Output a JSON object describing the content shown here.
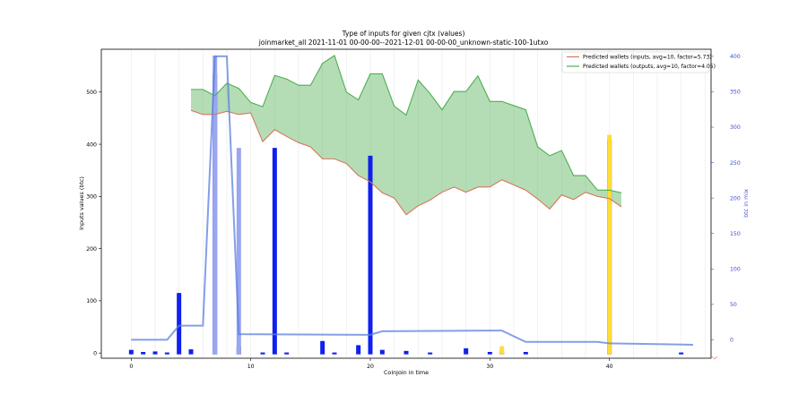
{
  "chart_data": {
    "type": "area",
    "title": "Type of inputs for given cjtx (values)",
    "subtitle": "joinmarket_all 2021-11-01 00-00-00--2021-12-01 00-00-00_unknown-static-100-1utxo",
    "xlabel": "Coinjoin in time",
    "ylabel": "Inputs values (btc)",
    "ylabel_right": "btc in mix",
    "xlim": [
      -2.5,
      48.5
    ],
    "ylim": [
      -10,
      582
    ],
    "ylim_right": [
      -26,
      410
    ],
    "x_ticks": [
      0,
      10,
      20,
      30,
      40
    ],
    "y_ticks": [
      0,
      100,
      200,
      300,
      400,
      500
    ],
    "y_ticks_right": [
      0,
      50,
      100,
      150,
      200,
      250,
      300,
      350,
      400
    ],
    "legend_position": "upper-right",
    "legend": [
      {
        "label": "Predicted wallets (inputs, avg=10, factor=5.73)",
        "color": "#d9765a"
      },
      {
        "label": "Predicted wallets (outputs, avg=10, factor=4.05)",
        "color": "#4caf50"
      }
    ],
    "series": [
      {
        "name": "Predicted wallets (inputs, avg=10, factor=5.73)",
        "color": "#d9765a",
        "x": [
          5,
          6,
          7,
          8,
          9,
          10,
          11,
          12,
          13,
          14,
          15,
          16,
          17,
          18,
          19,
          20,
          21,
          22,
          23,
          24,
          25,
          26,
          27,
          28,
          29,
          30,
          31,
          32,
          33,
          34,
          35,
          36,
          37,
          38,
          39,
          40,
          41
        ],
        "values": [
          465,
          457,
          457,
          463,
          457,
          460,
          405,
          428,
          415,
          403,
          395,
          372,
          372,
          363,
          340,
          328,
          307,
          297,
          265,
          282,
          293,
          308,
          318,
          308,
          318,
          318,
          332,
          322,
          312,
          295,
          276,
          303,
          294,
          308,
          300,
          296,
          280
        ]
      },
      {
        "name": "Predicted wallets (outputs, avg=10, factor=4.05)",
        "color": "#4caf50",
        "x": [
          5,
          6,
          7,
          8,
          9,
          10,
          11,
          12,
          13,
          14,
          15,
          16,
          17,
          18,
          19,
          20,
          21,
          22,
          23,
          24,
          25,
          26,
          27,
          28,
          29,
          30,
          31,
          32,
          33,
          34,
          35,
          36,
          37,
          38,
          39,
          40,
          41
        ],
        "values": [
          505,
          505,
          493,
          517,
          507,
          480,
          472,
          532,
          525,
          513,
          513,
          555,
          570,
          500,
          485,
          535,
          535,
          473,
          456,
          523,
          497,
          466,
          501,
          501,
          531,
          482,
          482,
          474,
          466,
          395,
          378,
          388,
          340,
          340,
          312,
          312,
          307
        ]
      }
    ],
    "btc_in_mix": {
      "name": "btc in mix",
      "axis": "right",
      "color": "#5b7fe0",
      "x": [
        0,
        3,
        4,
        6,
        7,
        8,
        9,
        20,
        21,
        30,
        31,
        32,
        33,
        39,
        40,
        47
      ],
      "values": [
        0,
        0,
        20,
        20,
        400,
        400,
        8,
        7,
        12,
        13,
        13,
        5,
        -3,
        -3,
        -5,
        -7
      ]
    },
    "bars": {
      "name": "inputs per coinjoin",
      "series": [
        {
          "name": "dark blue",
          "color": "#1020ee",
          "x": [
            0,
            1,
            2,
            3,
            4,
            5,
            7,
            9,
            11,
            12,
            13,
            16,
            17,
            19,
            20,
            21,
            23,
            25,
            28,
            30,
            31,
            33,
            40,
            46
          ],
          "values": [
            6,
            2,
            3,
            1,
            115,
            7,
            535,
            12,
            1,
            393,
            1,
            23,
            1,
            15,
            378,
            6,
            4,
            1,
            9,
            2,
            3,
            2,
            408,
            1
          ]
        },
        {
          "name": "light blue",
          "color": "#9aa6f0",
          "x": [
            7,
            9
          ],
          "values": [
            570,
            393
          ]
        },
        {
          "name": "yellow",
          "color": "#ffdd33",
          "x": [
            31,
            40
          ],
          "values": [
            13,
            418
          ]
        }
      ]
    },
    "grid": true
  }
}
